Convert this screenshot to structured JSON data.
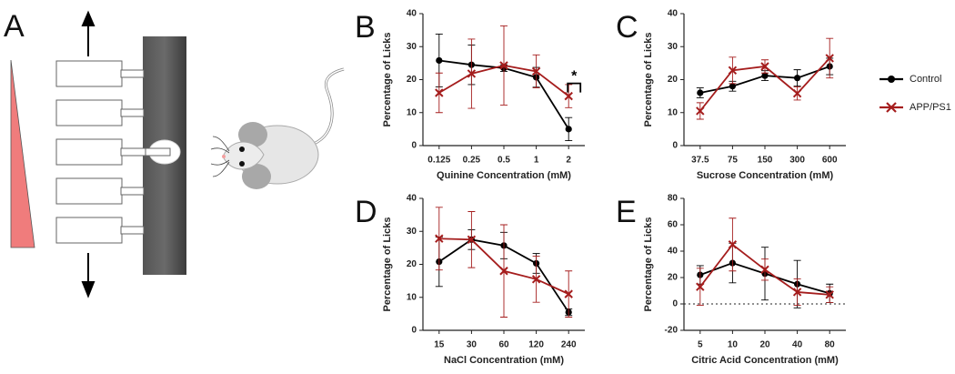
{
  "schematic": {
    "panel_label": "A"
  },
  "legend_position": "right",
  "chart_data": [
    {
      "type": "line",
      "panel_label": "B",
      "x_label": "Quinine Concentration (mM)",
      "y_label": "Percentage of Licks",
      "categories": [
        "0.125",
        "0.25",
        "0.5",
        "1",
        "2"
      ],
      "ylim": [
        0,
        40
      ],
      "yticks": [
        0,
        10,
        20,
        30,
        40
      ],
      "annotation": "*",
      "series": [
        {
          "name": "Control",
          "color": "#000000",
          "marker": "circle",
          "values": [
            25.8,
            24.5,
            23.5,
            20.7,
            5
          ],
          "errors": [
            8,
            6,
            1,
            3,
            3.5
          ]
        },
        {
          "name": "APP/PS1",
          "color": "#a51d1d",
          "marker": "x",
          "values": [
            16,
            21.8,
            24.3,
            22.5,
            15
          ],
          "errors": [
            6,
            10.5,
            12,
            5,
            3.5
          ]
        }
      ]
    },
    {
      "type": "line",
      "panel_label": "C",
      "x_label": "Sucrose Concentration (mM)",
      "y_label": "Percentage of Licks",
      "categories": [
        "37.5",
        "75",
        "150",
        "300",
        "600"
      ],
      "ylim": [
        0,
        40
      ],
      "yticks": [
        0,
        10,
        20,
        30,
        40
      ],
      "series": [
        {
          "name": "Control",
          "color": "#000000",
          "marker": "circle",
          "values": [
            16,
            18,
            21.2,
            20.5,
            24
          ],
          "errors": [
            1.5,
            1.5,
            1.5,
            2.5,
            2.5
          ]
        },
        {
          "name": "APP/PS1",
          "color": "#a51d1d",
          "marker": "x",
          "values": [
            10.5,
            22.8,
            24,
            15.8,
            26.5
          ],
          "errors": [
            2.5,
            4,
            2,
            2,
            6
          ]
        }
      ]
    },
    {
      "type": "line",
      "panel_label": "D",
      "x_label": "NaCl Concentration (mM)",
      "y_label": "Percentage of Licks",
      "categories": [
        "15",
        "30",
        "60",
        "120",
        "240"
      ],
      "ylim": [
        0,
        40
      ],
      "yticks": [
        0,
        10,
        20,
        30,
        40
      ],
      "series": [
        {
          "name": "Control",
          "color": "#000000",
          "marker": "circle",
          "values": [
            20.8,
            27.5,
            25.7,
            20.3,
            5.5
          ],
          "errors": [
            7.5,
            3,
            4,
            3,
            1
          ]
        },
        {
          "name": "APP/PS1",
          "color": "#a51d1d",
          "marker": "x",
          "values": [
            27.8,
            27.5,
            18,
            15.5,
            11
          ],
          "errors": [
            9.5,
            8.5,
            14,
            7,
            7
          ]
        }
      ]
    },
    {
      "type": "line",
      "panel_label": "E",
      "x_label": "Citric Acid Concentration (mM)",
      "y_label": "Percentage of Licks",
      "categories": [
        "5",
        "10",
        "20",
        "40",
        "80"
      ],
      "ylim": [
        -20,
        80
      ],
      "yticks": [
        -20,
        0,
        20,
        40,
        60,
        80
      ],
      "zero_line": true,
      "series": [
        {
          "name": "Control",
          "color": "#000000",
          "marker": "circle",
          "values": [
            22,
            31,
            23,
            15,
            8
          ],
          "errors": [
            7,
            15,
            20,
            18,
            7
          ]
        },
        {
          "name": "APP/PS1",
          "color": "#a51d1d",
          "marker": "x",
          "values": [
            13,
            45,
            26,
            9,
            7
          ],
          "errors": [
            14,
            20,
            8,
            10,
            6
          ]
        }
      ]
    }
  ]
}
